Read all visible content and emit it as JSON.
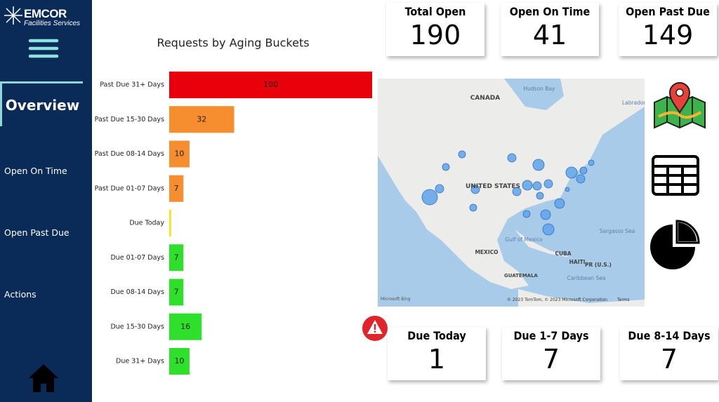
{
  "sidebar": {
    "logo": "EMCOR",
    "logo_sub": "Facilities Services",
    "nav": [
      "Overview",
      "Open On Time",
      "Open Past Due",
      "Actions"
    ]
  },
  "cards": [
    {
      "title": "Total Open",
      "value": 190
    },
    {
      "title": "Open On Time",
      "value": 41
    },
    {
      "title": "Open Past Due",
      "value": 149
    },
    {
      "title": "Due Today",
      "value": 1
    },
    {
      "title": "Due 1-7 Days",
      "value": 7
    },
    {
      "title": "Due 8-14 Days",
      "value": 7
    }
  ],
  "chart_data": {
    "type": "barh",
    "title": "Requests by Aging Buckets",
    "categories": [
      "Past Due 31+ Days",
      "Past Due 15-30 Days",
      "Past Due 08-14 Days",
      "Past Due 01-07 Days",
      "Due Today",
      "Due 01-07 Days",
      "Due 08-14 Days",
      "Due 15-30 Days",
      "Due 31+ Days"
    ],
    "values": [
      100,
      32,
      10,
      7,
      1,
      7,
      7,
      16,
      10
    ],
    "value_labels": [
      "100",
      "32",
      "10",
      "7",
      null,
      "7",
      "7",
      "16",
      "10"
    ],
    "colors": [
      "#e8000b",
      "#f68d2e",
      "#f68d2e",
      "#f68d2e",
      "#f2e81e",
      "#2fe02a",
      "#2fe02a",
      "#2fe02a",
      "#2fe02a"
    ],
    "xlim": [
      0,
      100
    ]
  },
  "map": {
    "labels": [
      "CANADA",
      "Hudson Bay",
      "Labrador S",
      "UNITED STATES",
      "Gulf of Mexico",
      "MEXICO",
      "CUBA",
      "HAITI",
      "PR (U.S.)",
      "GUATEMALA",
      "Caribbean Sea",
      "Sargasso Sea",
      "Microsoft Bing",
      "© 2023 TomTom, © 2023 Microsoft Corporation",
      "Terms"
    ]
  }
}
